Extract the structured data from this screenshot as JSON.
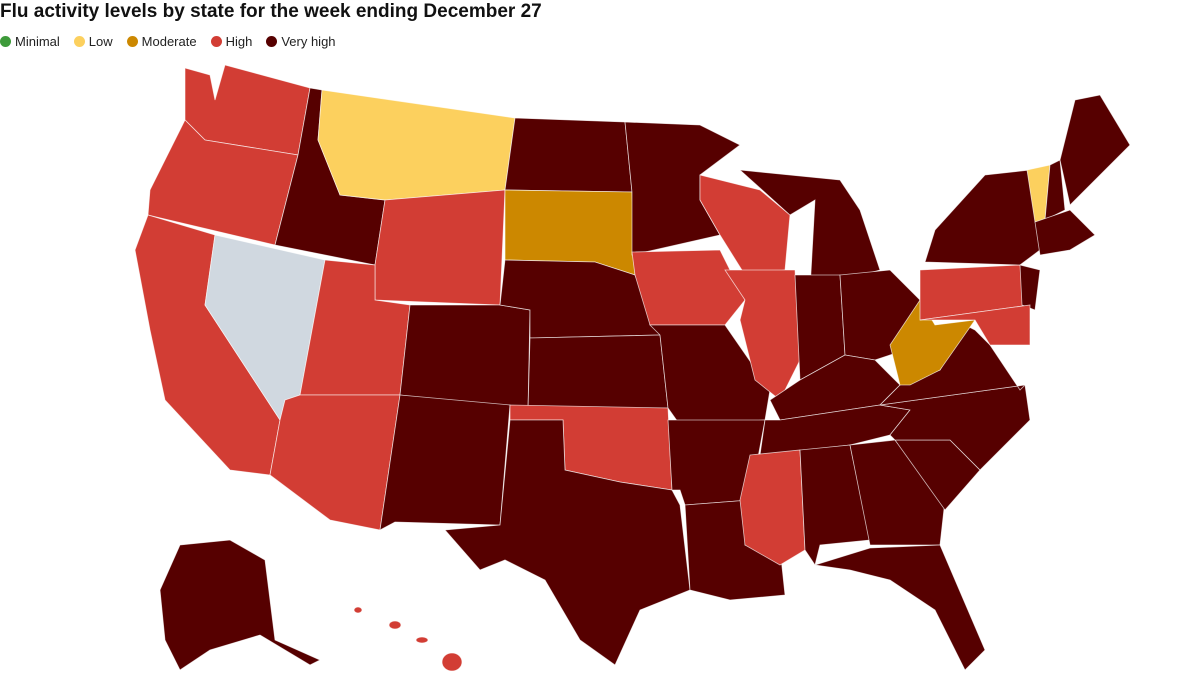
{
  "chart_data": {
    "type": "choropleth",
    "title": "Flu activity levels by state for the week ending December 27",
    "legend": [
      {
        "label": "Minimal",
        "color": "#3e9a3a"
      },
      {
        "label": "Low",
        "color": "#fcd05e"
      },
      {
        "label": "Moderate",
        "color": "#cc8800"
      },
      {
        "label": "High",
        "color": "#d23d34"
      },
      {
        "label": "Very high",
        "color": "#560000"
      }
    ]
  }
}
